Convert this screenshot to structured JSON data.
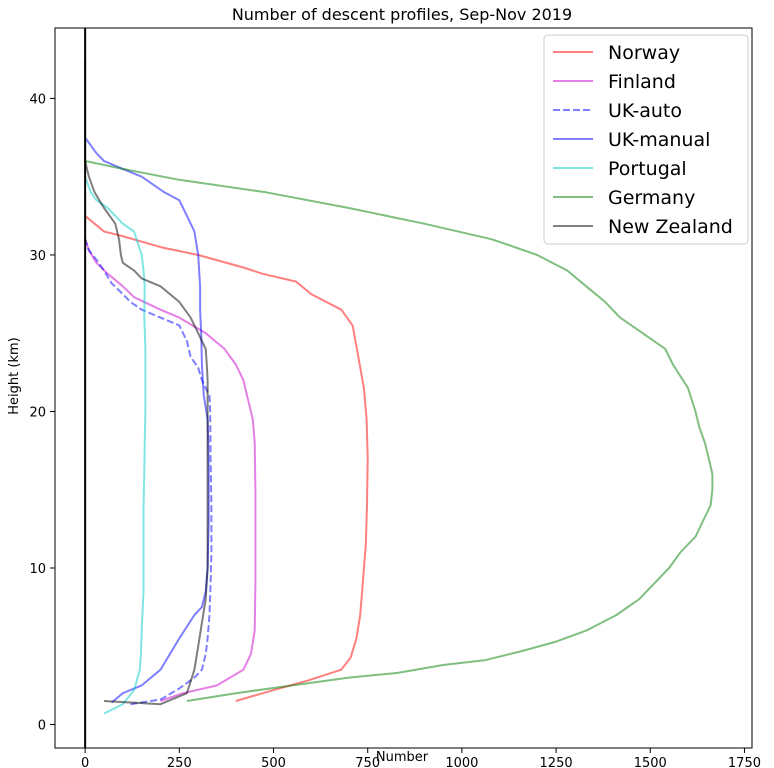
{
  "chart_data": {
    "type": "line",
    "title": "Number of descent profiles, Sep-Nov 2019",
    "xlabel": "Number",
    "ylabel": "Height (km)",
    "xlim": [
      -80,
      1770
    ],
    "ylim": [
      -1.5,
      44.5
    ],
    "xticks": [
      0,
      250,
      500,
      750,
      1000,
      1250,
      1500,
      1750
    ],
    "yticks": [
      0,
      10,
      20,
      30,
      40
    ],
    "grid": false,
    "legend_position": "top-right",
    "zero_line": true,
    "series": [
      {
        "name": "Norway",
        "color": "#ff0000",
        "dashed": false,
        "points": [
          [
            400,
            1.5
          ],
          [
            500,
            2.2
          ],
          [
            590,
            2.8
          ],
          [
            680,
            3.5
          ],
          [
            705,
            4.3
          ],
          [
            720,
            5.5
          ],
          [
            730,
            7
          ],
          [
            735,
            8.5
          ],
          [
            740,
            10
          ],
          [
            745,
            11.5
          ],
          [
            748,
            14
          ],
          [
            750,
            17
          ],
          [
            747,
            19.5
          ],
          [
            740,
            21.5
          ],
          [
            725,
            23.5
          ],
          [
            710,
            25.5
          ],
          [
            680,
            26.5
          ],
          [
            600,
            27.5
          ],
          [
            560,
            28.3
          ],
          [
            470,
            28.8
          ],
          [
            420,
            29.2
          ],
          [
            300,
            30
          ],
          [
            200,
            30.5
          ],
          [
            100,
            31.2
          ],
          [
            50,
            31.5
          ],
          [
            25,
            32
          ],
          [
            0,
            32.5
          ]
        ]
      },
      {
        "name": "Finland",
        "color": "#cc00cc",
        "dashed": false,
        "points": [
          [
            200,
            1.5
          ],
          [
            260,
            2
          ],
          [
            350,
            2.5
          ],
          [
            420,
            3.5
          ],
          [
            440,
            4.5
          ],
          [
            450,
            6
          ],
          [
            452,
            9
          ],
          [
            452,
            12
          ],
          [
            452,
            15
          ],
          [
            450,
            18
          ],
          [
            445,
            19.5
          ],
          [
            430,
            21
          ],
          [
            420,
            22
          ],
          [
            400,
            23
          ],
          [
            370,
            24
          ],
          [
            320,
            25
          ],
          [
            250,
            26
          ],
          [
            200,
            26.5
          ],
          [
            130,
            27.3
          ],
          [
            100,
            28
          ],
          [
            60,
            28.8
          ],
          [
            30,
            29.5
          ],
          [
            10,
            30.3
          ],
          [
            0,
            31
          ]
        ]
      },
      {
        "name": "UK-auto",
        "color": "#0000ff",
        "dashed": true,
        "points": [
          [
            120,
            1.3
          ],
          [
            200,
            1.6
          ],
          [
            250,
            2.3
          ],
          [
            290,
            3
          ],
          [
            310,
            3.5
          ],
          [
            320,
            4.5
          ],
          [
            325,
            5.5
          ],
          [
            330,
            7
          ],
          [
            333,
            9
          ],
          [
            335,
            11
          ],
          [
            335,
            14
          ],
          [
            333,
            17
          ],
          [
            332,
            20
          ],
          [
            330,
            21
          ],
          [
            310,
            22
          ],
          [
            300,
            22.8
          ],
          [
            280,
            23.5
          ],
          [
            270,
            24.5
          ],
          [
            250,
            25.5
          ],
          [
            200,
            26
          ],
          [
            150,
            26.5
          ],
          [
            120,
            27
          ],
          [
            100,
            27.5
          ],
          [
            70,
            28.2
          ],
          [
            50,
            29
          ],
          [
            30,
            29.7
          ],
          [
            10,
            30.3
          ],
          [
            0,
            31
          ]
        ]
      },
      {
        "name": "UK-manual",
        "color": "#0000ff",
        "dashed": false,
        "points": [
          [
            70,
            1.4
          ],
          [
            100,
            2
          ],
          [
            150,
            2.5
          ],
          [
            200,
            3.5
          ],
          [
            250,
            5.5
          ],
          [
            290,
            7
          ],
          [
            310,
            7.5
          ],
          [
            320,
            8.5
          ],
          [
            325,
            10
          ],
          [
            328,
            13
          ],
          [
            328,
            16
          ],
          [
            327,
            18
          ],
          [
            325,
            19.5
          ],
          [
            315,
            21
          ],
          [
            310,
            23
          ],
          [
            308,
            25
          ],
          [
            305,
            26.5
          ],
          [
            305,
            28
          ],
          [
            300,
            30
          ],
          [
            290,
            31.5
          ],
          [
            270,
            32.5
          ],
          [
            250,
            33.5
          ],
          [
            210,
            34
          ],
          [
            150,
            35
          ],
          [
            100,
            35.5
          ],
          [
            50,
            36
          ],
          [
            30,
            36.5
          ],
          [
            15,
            37
          ],
          [
            0,
            37.5
          ]
        ]
      },
      {
        "name": "Portugal",
        "color": "#00cccc",
        "dashed": false,
        "points": [
          [
            50,
            0.7
          ],
          [
            100,
            1.3
          ],
          [
            130,
            2.2
          ],
          [
            145,
            3.5
          ],
          [
            148,
            4.5
          ],
          [
            150,
            6
          ],
          [
            152,
            7
          ],
          [
            155,
            8.5
          ],
          [
            155,
            10
          ],
          [
            155,
            12.5
          ],
          [
            155,
            14
          ],
          [
            157,
            16
          ],
          [
            158,
            18
          ],
          [
            160,
            20
          ],
          [
            160,
            22
          ],
          [
            160,
            24
          ],
          [
            157,
            26
          ],
          [
            158,
            28
          ],
          [
            155,
            29
          ],
          [
            150,
            30
          ],
          [
            130,
            31.5
          ],
          [
            100,
            32
          ],
          [
            60,
            33
          ],
          [
            30,
            33.5
          ],
          [
            15,
            34
          ],
          [
            0,
            35
          ]
        ]
      },
      {
        "name": "Germany",
        "color": "#008000",
        "dashed": false,
        "points": [
          [
            270,
            1.5
          ],
          [
            400,
            2
          ],
          [
            550,
            2.5
          ],
          [
            700,
            3
          ],
          [
            830,
            3.3
          ],
          [
            950,
            3.8
          ],
          [
            1060,
            4.1
          ],
          [
            1160,
            4.7
          ],
          [
            1250,
            5.3
          ],
          [
            1330,
            6
          ],
          [
            1410,
            7
          ],
          [
            1470,
            8
          ],
          [
            1510,
            9
          ],
          [
            1550,
            10
          ],
          [
            1580,
            11
          ],
          [
            1620,
            12
          ],
          [
            1640,
            13
          ],
          [
            1660,
            14
          ],
          [
            1665,
            15
          ],
          [
            1665,
            16
          ],
          [
            1655,
            17
          ],
          [
            1645,
            18
          ],
          [
            1630,
            19
          ],
          [
            1620,
            20
          ],
          [
            1600,
            21.5
          ],
          [
            1560,
            23
          ],
          [
            1540,
            24
          ],
          [
            1480,
            25
          ],
          [
            1420,
            26
          ],
          [
            1380,
            27
          ],
          [
            1330,
            28
          ],
          [
            1280,
            29
          ],
          [
            1200,
            30
          ],
          [
            1080,
            31
          ],
          [
            900,
            32
          ],
          [
            700,
            33
          ],
          [
            480,
            34
          ],
          [
            250,
            34.8
          ],
          [
            100,
            35.5
          ],
          [
            0,
            36
          ],
          [
            0,
            38
          ],
          [
            0,
            42.5
          ]
        ]
      },
      {
        "name": "New Zealand",
        "color": "#000000",
        "dashed": false,
        "points": [
          [
            50,
            1.5
          ],
          [
            200,
            1.3
          ],
          [
            270,
            2
          ],
          [
            290,
            3.5
          ],
          [
            300,
            5
          ],
          [
            310,
            6.5
          ],
          [
            320,
            8
          ],
          [
            325,
            10
          ],
          [
            325,
            12
          ],
          [
            325,
            14
          ],
          [
            325,
            16
          ],
          [
            325,
            18
          ],
          [
            325,
            20
          ],
          [
            325,
            22
          ],
          [
            323,
            23
          ],
          [
            320,
            24
          ],
          [
            300,
            25
          ],
          [
            280,
            26
          ],
          [
            250,
            27
          ],
          [
            200,
            28
          ],
          [
            150,
            28.5
          ],
          [
            130,
            29
          ],
          [
            100,
            29.5
          ],
          [
            95,
            30
          ],
          [
            90,
            31
          ],
          [
            80,
            32
          ],
          [
            50,
            33
          ],
          [
            25,
            34
          ],
          [
            10,
            35
          ],
          [
            0,
            36
          ]
        ]
      }
    ]
  }
}
